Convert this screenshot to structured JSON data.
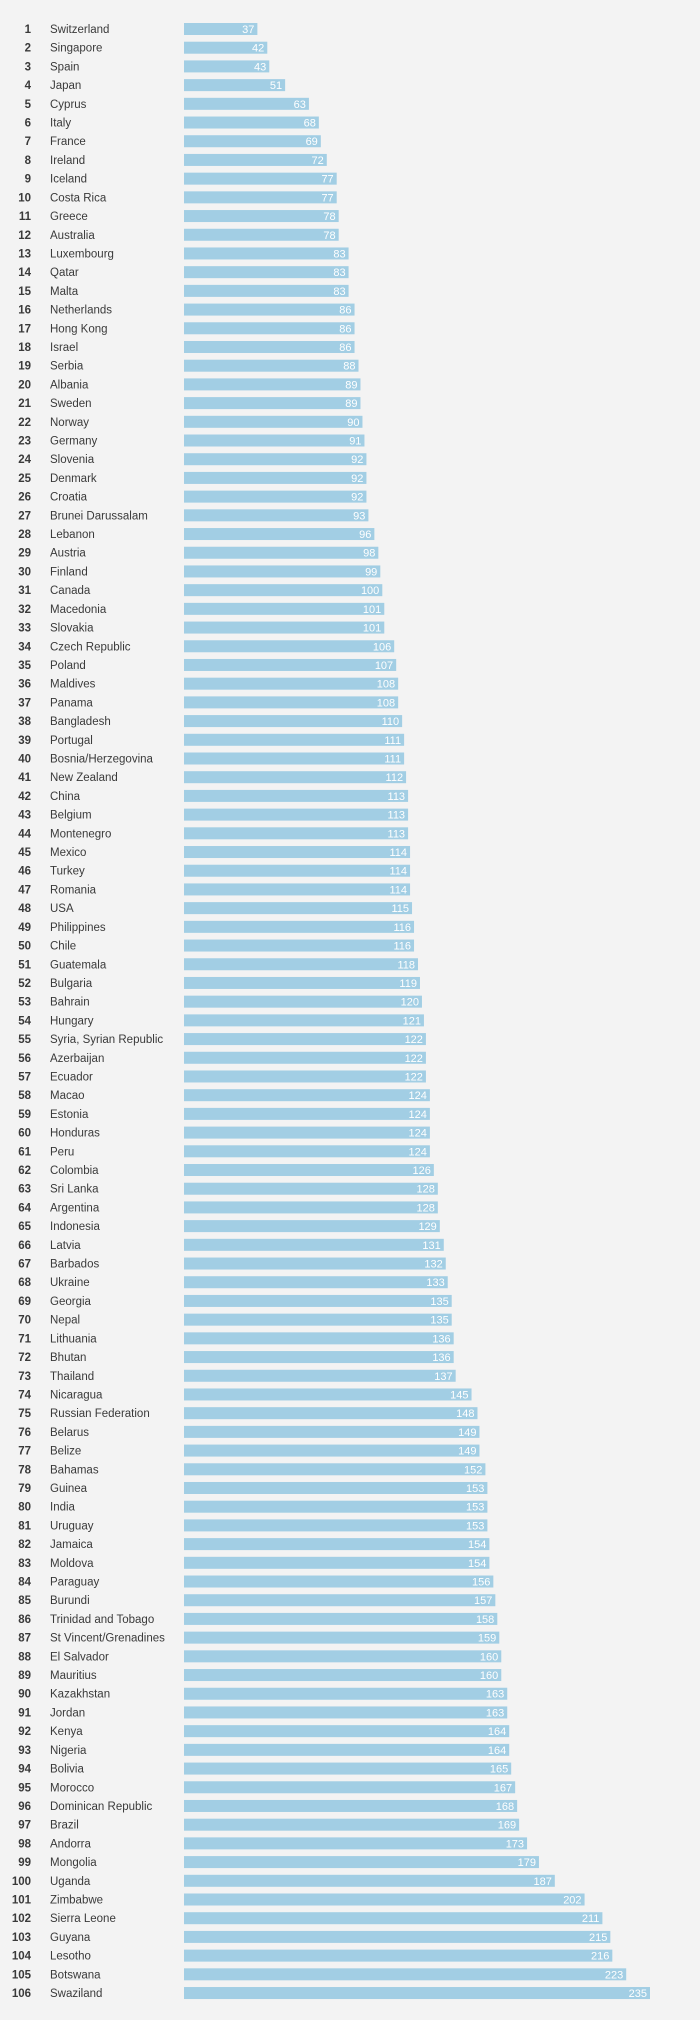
{
  "colors": {
    "background": "#f3f3f3",
    "bar": "#a2cee4",
    "bar_label": "#ffffff",
    "text": "#3a3a3a"
  },
  "chart_data": {
    "type": "bar",
    "orientation": "horizontal",
    "title": "",
    "xlabel": "",
    "ylabel": "",
    "grid": false,
    "legend": "none",
    "xlim": [
      0,
      235
    ],
    "ranks": [
      1,
      2,
      3,
      4,
      5,
      6,
      7,
      8,
      9,
      10,
      11,
      12,
      13,
      14,
      15,
      16,
      17,
      18,
      19,
      20,
      21,
      22,
      23,
      24,
      25,
      26,
      27,
      28,
      29,
      30,
      31,
      32,
      33,
      34,
      35,
      36,
      37,
      38,
      39,
      40,
      41,
      42,
      43,
      44,
      45,
      46,
      47,
      48,
      49,
      50,
      51,
      52,
      53,
      54,
      55,
      56,
      57,
      58,
      59,
      60,
      61,
      62,
      63,
      64,
      65,
      66,
      67,
      68,
      69,
      70,
      71,
      72,
      73,
      74,
      75,
      76,
      77,
      78,
      79,
      80,
      81,
      82,
      83,
      84,
      85,
      86,
      87,
      88,
      89,
      90,
      91,
      92,
      93,
      94,
      95,
      96,
      97,
      98,
      99,
      100,
      101,
      102,
      103,
      104,
      105,
      106
    ],
    "categories": [
      "Switzerland",
      "Singapore",
      "Spain",
      "Japan",
      "Cyprus",
      "Italy",
      "France",
      "Ireland",
      "Iceland",
      "Costa Rica",
      "Greece",
      "Australia",
      "Luxembourg",
      "Qatar",
      "Malta",
      "Netherlands",
      "Hong Kong",
      "Israel",
      "Serbia",
      "Albania",
      "Sweden",
      "Norway",
      "Germany",
      "Slovenia",
      "Denmark",
      "Croatia",
      "Brunei Darussalam",
      "Lebanon",
      "Austria",
      "Finland",
      "Canada",
      "Macedonia",
      "Slovakia",
      "Czech Republic",
      "Poland",
      "Maldives",
      "Panama",
      "Bangladesh",
      "Portugal",
      "Bosnia/Herzegovina",
      "New Zealand",
      "China",
      "Belgium",
      "Montenegro",
      "Mexico",
      "Turkey",
      "Romania",
      "USA",
      "Philippines",
      "Chile",
      "Guatemala",
      "Bulgaria",
      "Bahrain",
      "Hungary",
      "Syria, Syrian Republic",
      "Azerbaijan",
      "Ecuador",
      "Macao",
      "Estonia",
      "Honduras",
      "Peru",
      "Colombia",
      "Sri Lanka",
      "Argentina",
      "Indonesia",
      "Latvia",
      "Barbados",
      "Ukraine",
      "Georgia",
      "Nepal",
      "Lithuania",
      "Bhutan",
      "Thailand",
      "Nicaragua",
      "Russian Federation",
      "Belarus",
      "Belize",
      "Bahamas",
      "Guinea",
      "India",
      "Uruguay",
      "Jamaica",
      "Moldova",
      "Paraguay",
      "Burundi",
      "Trinidad and Tobago",
      "St Vincent/Grenadines",
      "El Salvador",
      "Mauritius",
      "Kazakhstan",
      "Jordan",
      "Kenya",
      "Nigeria",
      "Bolivia",
      "Morocco",
      "Dominican Republic",
      "Brazil",
      "Andorra",
      "Mongolia",
      "Uganda",
      "Zimbabwe",
      "Sierra Leone",
      "Guyana",
      "Lesotho",
      "Botswana",
      "Swaziland"
    ],
    "values": [
      37,
      42,
      43,
      51,
      63,
      68,
      69,
      72,
      77,
      77,
      78,
      78,
      83,
      83,
      83,
      86,
      86,
      86,
      88,
      89,
      89,
      90,
      91,
      92,
      92,
      92,
      93,
      96,
      98,
      99,
      100,
      101,
      101,
      106,
      107,
      108,
      108,
      110,
      111,
      111,
      112,
      113,
      113,
      113,
      114,
      114,
      114,
      115,
      116,
      116,
      118,
      119,
      120,
      121,
      122,
      122,
      122,
      124,
      124,
      124,
      124,
      126,
      128,
      128,
      129,
      131,
      132,
      133,
      135,
      135,
      136,
      136,
      137,
      145,
      148,
      149,
      149,
      152,
      153,
      153,
      153,
      154,
      154,
      156,
      157,
      158,
      159,
      160,
      160,
      163,
      163,
      164,
      164,
      165,
      167,
      168,
      169,
      173,
      179,
      187,
      202,
      211,
      215,
      216,
      223,
      235
    ]
  }
}
